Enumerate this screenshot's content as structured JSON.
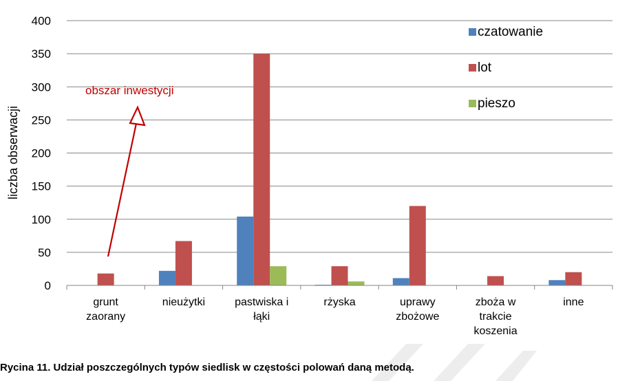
{
  "chart_data": {
    "type": "bar",
    "ylabel": "liczba obserwacji",
    "ylim": [
      0,
      400
    ],
    "yticks": [
      0,
      50,
      100,
      150,
      200,
      250,
      300,
      350,
      400
    ],
    "categories": [
      [
        "grunt",
        "zaorany"
      ],
      [
        "nieużytki"
      ],
      [
        "pastwiska i",
        "łąki"
      ],
      [
        "rżyska"
      ],
      [
        "uprawy",
        "zbożowe"
      ],
      [
        "zboża w",
        "trakcie",
        "koszenia"
      ],
      [
        "inne"
      ]
    ],
    "series": [
      {
        "name": "czatowanie",
        "color": "#4f81bd",
        "values": [
          0,
          22,
          104,
          1,
          11,
          0,
          8
        ]
      },
      {
        "name": "lot",
        "color": "#c0504d",
        "values": [
          18,
          67,
          350,
          29,
          120,
          14,
          20
        ]
      },
      {
        "name": "pieszo",
        "color": "#9bbb59",
        "values": [
          0,
          0,
          29,
          6,
          0,
          0,
          0
        ]
      }
    ],
    "grid": true,
    "legend_position": "top-right",
    "annotation": {
      "text": "obszar inwestycji",
      "color": "#c00000",
      "points_to": "grunt zaorany"
    }
  },
  "caption": "Rycina 11. Udział poszczególnych typów siedlisk w częstości polowań daną metodą."
}
